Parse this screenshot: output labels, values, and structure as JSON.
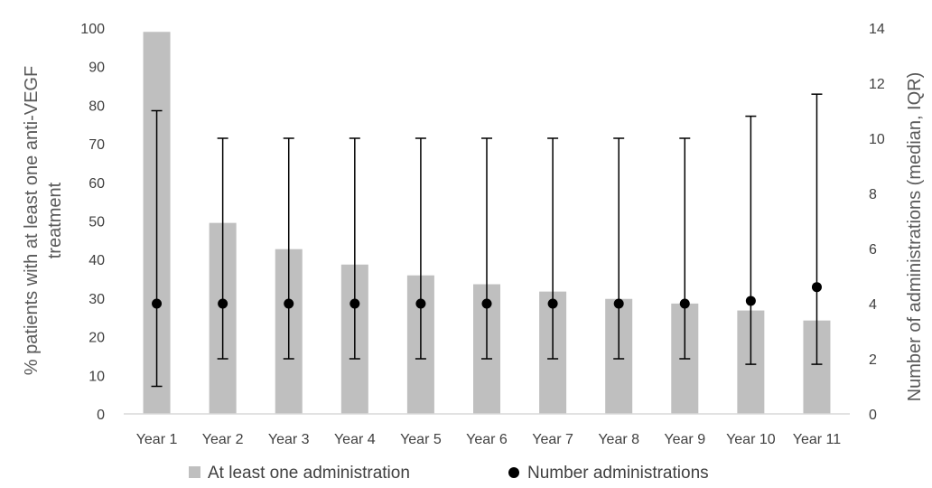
{
  "chart_data": {
    "type": "bar",
    "categories": [
      "Year 1",
      "Year 2",
      "Year 3",
      "Year 4",
      "Year 5",
      "Year 6",
      "Year 7",
      "Year 8",
      "Year 9",
      "Year 10",
      "Year 11"
    ],
    "series": [
      {
        "name": "At least one administration",
        "type": "bar",
        "axis": "left",
        "color": "#bfbfbf",
        "values": [
          99,
          49.5,
          42.7,
          38.7,
          35.9,
          33.6,
          31.7,
          29.8,
          28.6,
          26.8,
          24.2
        ]
      },
      {
        "name": "Number administrations",
        "type": "scatter",
        "axis": "right",
        "color": "#000000",
        "values": [
          4,
          4,
          4,
          4,
          4,
          4,
          4,
          4,
          4,
          4.1,
          4.6
        ],
        "error_low": [
          1,
          2,
          2,
          2,
          2,
          2,
          2,
          2,
          2,
          1.8,
          1.8
        ],
        "error_high": [
          11,
          10,
          10,
          10,
          10,
          10,
          10,
          10,
          10,
          10.8,
          11.6
        ]
      }
    ],
    "ylabel": "% patients with at least one anti-VEGF treatment",
    "ylabel_lines": [
      "% patients with at least one anti-VEGF",
      "treatment"
    ],
    "y2label": "Number of administrations (median, IQR)",
    "ylim": [
      0,
      100
    ],
    "yticks": [
      0,
      10,
      20,
      30,
      40,
      50,
      60,
      70,
      80,
      90,
      100
    ],
    "y2lim": [
      0,
      14
    ],
    "y2ticks": [
      0,
      2,
      4,
      6,
      8,
      10,
      12,
      14
    ],
    "xlabel": "",
    "grid": false,
    "legend_position": "bottom"
  }
}
